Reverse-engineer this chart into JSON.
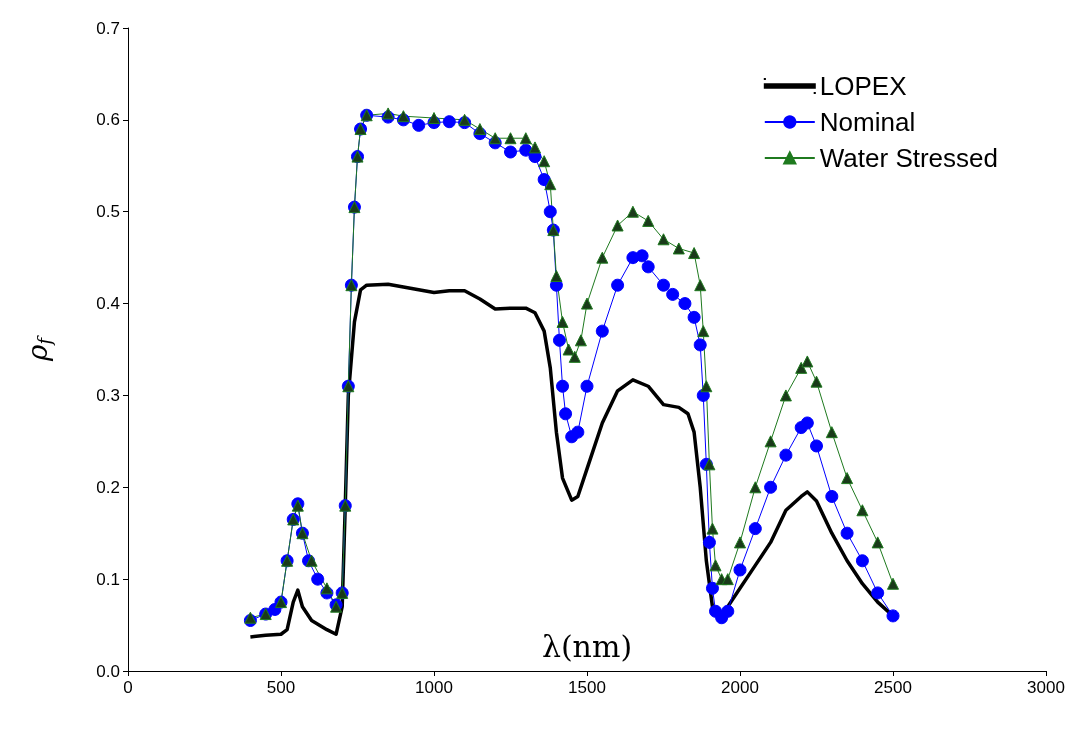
{
  "chart_data": {
    "type": "line",
    "xlabel": "λ(nm)",
    "ylabel": "ρ$_{f}$",
    "xlim": [
      0,
      3000
    ],
    "xticks": [
      0,
      500,
      1000,
      1500,
      2000,
      2500,
      3000
    ],
    "ylim": [
      0,
      0.7
    ],
    "yticks": [
      {
        "value": 0,
        "label": "0.0"
      },
      0.1,
      0.2,
      0.3,
      0.4,
      0.5,
      0.6,
      {
        "value": 0.7,
        "label": "0.7"
      }
    ],
    "legend": "top right",
    "grid": false,
    "series": [
      {
        "name": "LOPEX",
        "color": "#000000",
        "marker": "none",
        "x": [
          400,
          450,
          500,
          520,
          540,
          555,
          570,
          600,
          650,
          680,
          700,
          710,
          720,
          740,
          760,
          780,
          850,
          900,
          950,
          1000,
          1050,
          1100,
          1150,
          1200,
          1250,
          1300,
          1330,
          1360,
          1380,
          1400,
          1420,
          1450,
          1470,
          1500,
          1550,
          1600,
          1650,
          1700,
          1750,
          1800,
          1830,
          1850,
          1870,
          1890,
          1910,
          1930,
          1950,
          2000,
          2050,
          2100,
          2150,
          2200,
          2220,
          2250,
          2300,
          2350,
          2400,
          2450,
          2500
        ],
        "values": [
          0.037,
          0.039,
          0.04,
          0.045,
          0.075,
          0.088,
          0.07,
          0.055,
          0.045,
          0.04,
          0.07,
          0.18,
          0.3,
          0.38,
          0.415,
          0.42,
          0.421,
          0.418,
          0.415,
          0.412,
          0.414,
          0.414,
          0.405,
          0.394,
          0.395,
          0.395,
          0.39,
          0.37,
          0.33,
          0.26,
          0.21,
          0.186,
          0.19,
          0.22,
          0.27,
          0.305,
          0.317,
          0.31,
          0.29,
          0.287,
          0.28,
          0.26,
          0.2,
          0.12,
          0.07,
          0.06,
          0.065,
          0.09,
          0.115,
          0.14,
          0.175,
          0.19,
          0.195,
          0.185,
          0.15,
          0.12,
          0.095,
          0.075,
          0.06
        ]
      },
      {
        "name": "Nominal",
        "color": "#0000ff",
        "marker": "circle",
        "x": [
          400,
          450,
          480,
          500,
          520,
          540,
          555,
          570,
          590,
          620,
          650,
          680,
          700,
          710,
          720,
          730,
          740,
          750,
          760,
          780,
          850,
          900,
          950,
          1000,
          1050,
          1100,
          1150,
          1200,
          1250,
          1300,
          1330,
          1360,
          1380,
          1390,
          1400,
          1410,
          1420,
          1430,
          1450,
          1470,
          1500,
          1550,
          1600,
          1650,
          1680,
          1700,
          1750,
          1780,
          1820,
          1850,
          1870,
          1880,
          1890,
          1900,
          1910,
          1920,
          1940,
          1960,
          2000,
          2050,
          2100,
          2150,
          2200,
          2220,
          2250,
          2300,
          2350,
          2400,
          2450,
          2500
        ],
        "values": [
          0.055,
          0.062,
          0.067,
          0.075,
          0.12,
          0.165,
          0.182,
          0.15,
          0.12,
          0.1,
          0.085,
          0.072,
          0.085,
          0.18,
          0.31,
          0.42,
          0.505,
          0.56,
          0.59,
          0.605,
          0.603,
          0.6,
          0.594,
          0.597,
          0.598,
          0.597,
          0.585,
          0.575,
          0.565,
          0.567,
          0.56,
          0.535,
          0.5,
          0.48,
          0.42,
          0.36,
          0.31,
          0.28,
          0.255,
          0.26,
          0.31,
          0.37,
          0.42,
          0.45,
          0.452,
          0.44,
          0.42,
          0.41,
          0.4,
          0.385,
          0.355,
          0.3,
          0.225,
          0.14,
          0.09,
          0.065,
          0.058,
          0.065,
          0.11,
          0.155,
          0.2,
          0.235,
          0.265,
          0.27,
          0.245,
          0.19,
          0.15,
          0.12,
          0.085,
          0.06
        ]
      },
      {
        "name": "Water Stressed",
        "color": "#1f7a1f",
        "marker": "triangle",
        "x": [
          400,
          450,
          500,
          520,
          540,
          555,
          570,
          600,
          650,
          680,
          700,
          710,
          720,
          730,
          740,
          750,
          760,
          780,
          850,
          900,
          1000,
          1100,
          1150,
          1200,
          1250,
          1300,
          1330,
          1360,
          1380,
          1390,
          1400,
          1420,
          1440,
          1460,
          1480,
          1500,
          1550,
          1600,
          1650,
          1700,
          1750,
          1800,
          1850,
          1870,
          1880,
          1890,
          1900,
          1910,
          1920,
          1940,
          1960,
          2000,
          2050,
          2100,
          2150,
          2200,
          2220,
          2250,
          2300,
          2350,
          2400,
          2450,
          2500
        ],
        "values": [
          0.058,
          0.062,
          0.075,
          0.12,
          0.165,
          0.18,
          0.15,
          0.12,
          0.09,
          0.07,
          0.085,
          0.18,
          0.31,
          0.42,
          0.505,
          0.56,
          0.59,
          0.605,
          0.607,
          0.604,
          0.602,
          0.6,
          0.59,
          0.58,
          0.58,
          0.58,
          0.57,
          0.555,
          0.53,
          0.48,
          0.43,
          0.38,
          0.35,
          0.342,
          0.36,
          0.4,
          0.45,
          0.485,
          0.5,
          0.49,
          0.47,
          0.46,
          0.455,
          0.42,
          0.37,
          0.31,
          0.225,
          0.155,
          0.115,
          0.1,
          0.1,
          0.14,
          0.2,
          0.25,
          0.3,
          0.33,
          0.337,
          0.315,
          0.26,
          0.21,
          0.175,
          0.14,
          0.095
        ]
      }
    ]
  }
}
